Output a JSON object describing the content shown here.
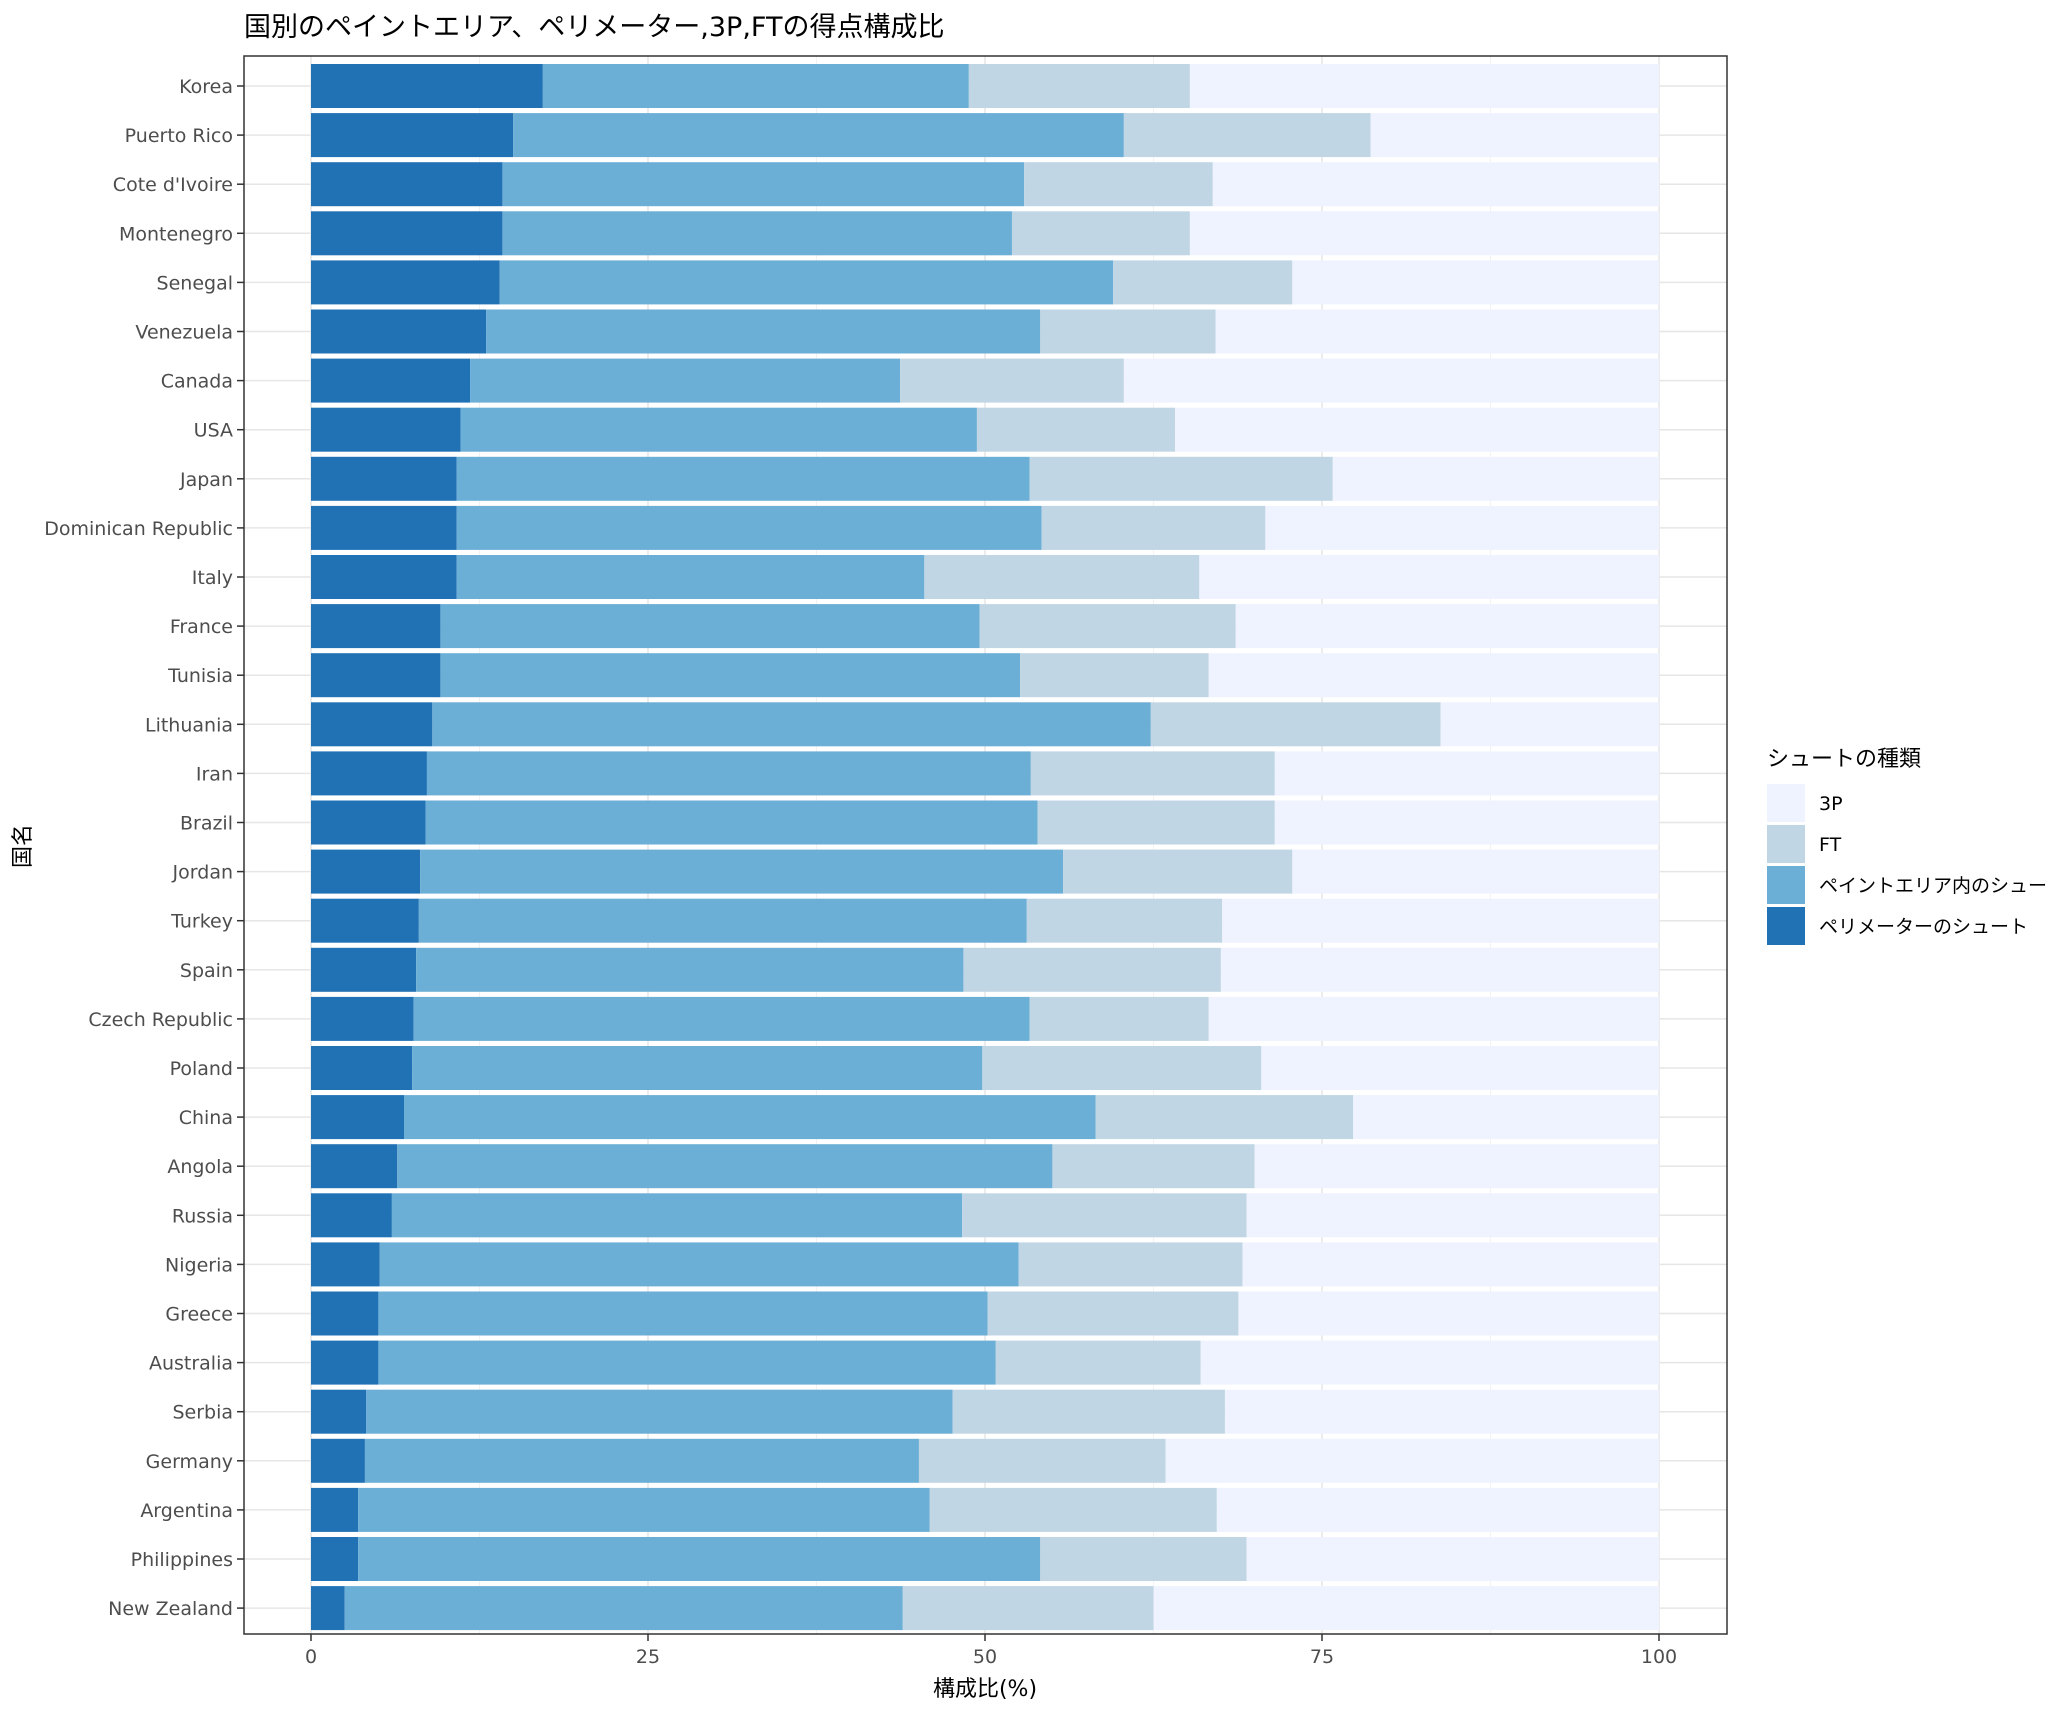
{
  "chart_data": {
    "type": "bar",
    "orientation": "horizontal",
    "stacked": true,
    "title": "国別のペイントエリア、ペリメーター,3P,FTの得点構成比",
    "xlabel": "構成比(%)",
    "ylabel": "国名",
    "xlim": [
      0,
      100
    ],
    "xticks": [
      0,
      25,
      50,
      75,
      100
    ],
    "grid": true,
    "legend_position": "right",
    "legend_title": "シュートの種類",
    "categories": [
      "Korea",
      "Puerto Rico",
      "Cote d'Ivoire",
      "Montenegro",
      "Senegal",
      "Venezuela",
      "Canada",
      "USA",
      "Japan",
      "Dominican Republic",
      "Italy",
      "France",
      "Tunisia",
      "Lithuania",
      "Iran",
      "Brazil",
      "Jordan",
      "Turkey",
      "Spain",
      "Czech Republic",
      "Poland",
      "China",
      "Angola",
      "Russia",
      "Nigeria",
      "Greece",
      "Australia",
      "Serbia",
      "Germany",
      "Argentina",
      "Philippines",
      "New Zealand"
    ],
    "series": [
      {
        "name": "ペリメーターのシュート",
        "color": "#2171b5",
        "values": [
          17.2,
          15.0,
          14.2,
          14.2,
          14.0,
          13.0,
          11.8,
          11.1,
          10.8,
          10.8,
          10.8,
          9.6,
          9.6,
          9.0,
          8.6,
          8.5,
          8.1,
          8.0,
          7.8,
          7.6,
          7.5,
          6.9,
          6.4,
          6.0,
          5.1,
          5.0,
          5.0,
          4.1,
          4.0,
          3.5,
          3.5,
          2.5
        ]
      },
      {
        "name": "ペイントエリア内のシュート",
        "color": "#6baed6",
        "values": [
          31.6,
          45.3,
          38.7,
          37.8,
          45.5,
          41.1,
          31.9,
          38.3,
          42.5,
          43.4,
          34.7,
          40.0,
          43.0,
          53.3,
          44.8,
          45.4,
          47.7,
          45.1,
          40.6,
          45.7,
          42.3,
          51.3,
          48.6,
          42.3,
          47.4,
          45.2,
          45.8,
          43.5,
          41.1,
          42.4,
          50.6,
          41.4
        ]
      },
      {
        "name": "FT",
        "color": "#c0d6e4",
        "values": [
          16.4,
          18.3,
          14.0,
          13.2,
          13.3,
          13.0,
          16.6,
          14.7,
          22.5,
          16.6,
          20.4,
          19.0,
          14.0,
          21.5,
          18.1,
          17.6,
          17.0,
          14.5,
          19.1,
          13.3,
          20.7,
          19.1,
          15.0,
          21.1,
          16.6,
          18.6,
          15.2,
          20.2,
          18.3,
          21.3,
          15.3,
          18.6
        ]
      },
      {
        "name": "3P",
        "color": "#eff3ff",
        "values": [
          34.8,
          21.4,
          33.1,
          34.8,
          27.2,
          32.9,
          39.7,
          35.9,
          24.2,
          29.2,
          34.1,
          31.4,
          33.4,
          16.2,
          28.5,
          28.5,
          27.2,
          32.4,
          32.5,
          33.4,
          29.5,
          22.7,
          30.0,
          30.6,
          30.9,
          31.2,
          34.0,
          32.2,
          36.6,
          32.8,
          30.6,
          37.5
        ]
      }
    ],
    "legend_order": [
      "3P",
      "FT",
      "ペイントエリア内のシュート",
      "ペリメーターのシュート"
    ]
  }
}
